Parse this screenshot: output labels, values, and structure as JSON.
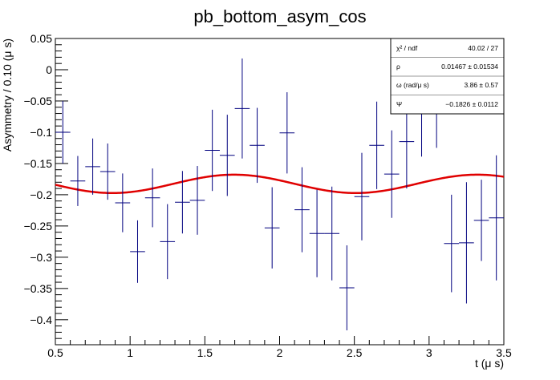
{
  "chart_data": {
    "type": "scatter",
    "title": "pb_bottom_asym_cos",
    "xlabel": "t (μ s)",
    "ylabel": "Asymmetry / 0.10 (μ s)",
    "xlim": [
      0.5,
      3.5
    ],
    "ylim": [
      -0.44,
      0.05
    ],
    "x_ticks": [
      0.5,
      1,
      1.5,
      2,
      2.5,
      3,
      3.5
    ],
    "x_tick_labels": [
      "0.5",
      "1",
      "1.5",
      "2",
      "2.5",
      "3",
      "3.5"
    ],
    "y_ticks": [
      0.05,
      0,
      -0.05,
      -0.1,
      -0.15,
      -0.2,
      -0.25,
      -0.3,
      -0.35,
      -0.4
    ],
    "y_tick_labels": [
      "0.05",
      "0",
      "−0.05",
      "−0.1",
      "−0.15",
      "−0.2",
      "−0.25",
      "−0.3",
      "−0.35",
      "−0.4"
    ],
    "grid": false,
    "colors": {
      "points": "#00007f",
      "fit": "#e00000"
    },
    "series": [
      {
        "x": [
          0.55,
          0.65,
          0.75,
          0.85,
          0.95,
          1.05,
          1.15,
          1.25,
          1.35,
          1.45,
          1.55,
          1.65,
          1.75,
          1.85,
          1.95,
          2.05,
          2.15,
          2.25,
          2.35,
          2.45,
          2.55,
          2.65,
          2.75,
          2.85,
          2.95,
          3.05,
          3.15,
          3.25,
          3.35,
          3.45
        ],
        "y": [
          -0.1,
          -0.178,
          -0.155,
          -0.163,
          -0.213,
          -0.291,
          -0.205,
          -0.275,
          -0.212,
          -0.209,
          -0.129,
          -0.137,
          -0.062,
          -0.121,
          -0.253,
          -0.101,
          -0.224,
          -0.262,
          -0.262,
          -0.349,
          -0.203,
          -0.121,
          -0.167,
          -0.115,
          -0.064,
          -0.045,
          -0.278,
          -0.277,
          -0.241,
          -0.237
        ],
        "yerr": [
          0.05,
          0.04,
          0.045,
          0.045,
          0.047,
          0.05,
          0.047,
          0.06,
          0.05,
          0.055,
          0.065,
          0.065,
          0.08,
          0.06,
          0.065,
          0.065,
          0.068,
          0.07,
          0.075,
          0.068,
          0.07,
          0.07,
          0.07,
          0.075,
          0.075,
          0.08,
          0.078,
          0.097,
          0.065,
          0.1
        ]
      }
    ],
    "fit": {
      "name": "fit",
      "offset": -0.1826,
      "amplitude": 0.01467,
      "omega": 3.86,
      "phase": -0.26
    },
    "stats_box": {
      "rows": [
        {
          "label": "χ² / ndf",
          "value": "40.02 / 27"
        },
        {
          "label": "ρ",
          "value": "0.01467 ± 0.01534"
        },
        {
          "label": "ω (rad/μ s)",
          "value": "3.86 ± 0.57"
        },
        {
          "label": "Ψ",
          "value": "−0.1826 ± 0.0112"
        }
      ]
    }
  }
}
